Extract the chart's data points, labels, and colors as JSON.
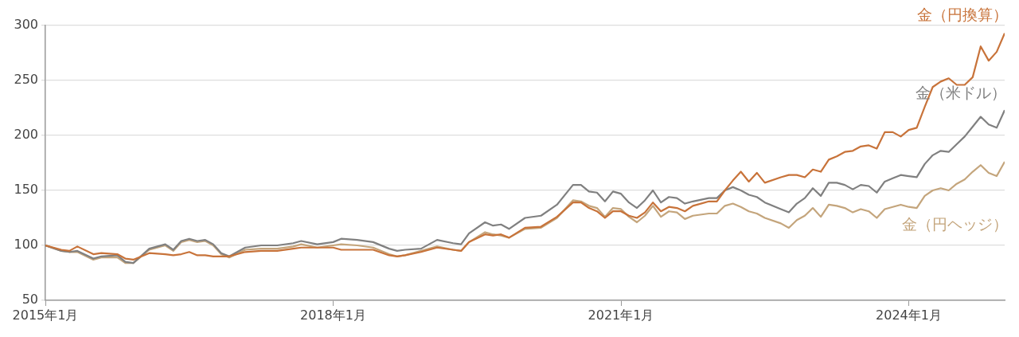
{
  "chart_data": {
    "type": "line",
    "x": [
      "2015-01",
      "2015-03",
      "2015-04",
      "2015-05",
      "2015-07",
      "2015-08",
      "2015-10",
      "2015-11",
      "2015-12",
      "2016-02",
      "2016-04",
      "2016-05",
      "2016-06",
      "2016-07",
      "2016-08",
      "2016-09",
      "2016-10",
      "2016-11",
      "2016-12",
      "2017-02",
      "2017-04",
      "2017-06",
      "2017-08",
      "2017-09",
      "2017-11",
      "2018-01",
      "2018-02",
      "2018-04",
      "2018-06",
      "2018-08",
      "2018-09",
      "2018-10",
      "2018-12",
      "2019-02",
      "2019-04",
      "2019-05",
      "2019-06",
      "2019-08",
      "2019-09",
      "2019-10",
      "2019-11",
      "2020-01",
      "2020-03",
      "2020-05",
      "2020-07",
      "2020-08",
      "2020-09",
      "2020-10",
      "2020-11",
      "2020-12",
      "2021-01",
      "2021-02",
      "2021-03",
      "2021-04",
      "2021-05",
      "2021-06",
      "2021-07",
      "2021-08",
      "2021-09",
      "2021-10",
      "2021-12",
      "2022-01",
      "2022-02",
      "2022-03",
      "2022-04",
      "2022-05",
      "2022-06",
      "2022-07",
      "2022-09",
      "2022-10",
      "2022-11",
      "2022-12",
      "2023-01",
      "2023-02",
      "2023-03",
      "2023-04",
      "2023-05",
      "2023-06",
      "2023-07",
      "2023-08",
      "2023-09",
      "2023-10",
      "2023-11",
      "2023-12",
      "2024-01",
      "2024-02",
      "2024-03",
      "2024-04",
      "2024-05",
      "2024-06",
      "2024-07",
      "2024-08",
      "2024-09",
      "2024-10",
      "2024-11",
      "2024-12",
      "2025-01"
    ],
    "series": [
      {
        "name": "金（円換算）",
        "color": "#c8733a",
        "values": [
          100,
          96,
          95,
          99,
          92,
          93,
          92,
          88,
          87,
          93,
          92,
          91,
          92,
          94,
          91,
          91,
          90,
          90,
          90,
          94,
          95,
          95,
          97,
          98,
          98,
          98,
          96,
          96,
          96,
          91,
          90,
          91,
          94,
          98,
          96,
          95,
          103,
          110,
          109,
          110,
          107,
          116,
          117,
          126,
          139,
          139,
          134,
          131,
          125,
          131,
          131,
          127,
          125,
          130,
          139,
          131,
          135,
          134,
          131,
          136,
          140,
          140,
          150,
          159,
          167,
          158,
          166,
          157,
          162,
          164,
          164,
          162,
          169,
          167,
          178,
          181,
          185,
          186,
          190,
          191,
          188,
          203,
          203,
          199,
          205,
          207,
          226,
          244,
          249,
          252,
          246,
          246,
          253,
          281,
          268,
          276,
          293
        ]
      },
      {
        "name": "金（米ドル）",
        "color": "#808080",
        "values": [
          100,
          95,
          94,
          95,
          88,
          90,
          91,
          85,
          84,
          97,
          101,
          96,
          104,
          106,
          104,
          105,
          101,
          93,
          90,
          98,
          100,
          100,
          102,
          104,
          101,
          103,
          106,
          105,
          103,
          97,
          95,
          96,
          97,
          105,
          102,
          101,
          111,
          121,
          118,
          119,
          115,
          125,
          127,
          137,
          155,
          155,
          149,
          148,
          140,
          149,
          147,
          139,
          134,
          141,
          150,
          139,
          144,
          143,
          138,
          140,
          143,
          143,
          150,
          153,
          150,
          146,
          144,
          139,
          133,
          130,
          138,
          143,
          152,
          145,
          157,
          157,
          155,
          151,
          155,
          154,
          148,
          158,
          161,
          164,
          163,
          162,
          174,
          182,
          186,
          185,
          192,
          199,
          208,
          217,
          210,
          207,
          223
        ]
      },
      {
        "name": "金（円ヘッジ）",
        "color": "#c4a57c",
        "values": [
          100,
          95,
          94,
          94,
          87,
          89,
          89,
          84,
          84,
          96,
          100,
          95,
          103,
          105,
          103,
          104,
          100,
          92,
          89,
          96,
          97,
          97,
          99,
          101,
          98,
          100,
          101,
          100,
          98,
          92,
          90,
          91,
          95,
          99,
          96,
          95,
          103,
          112,
          110,
          109,
          107,
          115,
          116,
          125,
          141,
          140,
          136,
          134,
          126,
          134,
          133,
          126,
          121,
          127,
          136,
          126,
          131,
          130,
          124,
          127,
          129,
          129,
          136,
          138,
          135,
          131,
          129,
          125,
          120,
          116,
          123,
          127,
          134,
          126,
          137,
          136,
          134,
          130,
          133,
          131,
          125,
          133,
          135,
          137,
          135,
          134,
          145,
          150,
          152,
          150,
          156,
          160,
          167,
          173,
          166,
          163,
          176
        ]
      }
    ],
    "xlim": [
      "2015-01",
      "2025-01"
    ],
    "xticks": [
      {
        "value": "2015-01",
        "label": "2015年1月"
      },
      {
        "value": "2018-01",
        "label": "2018年1月"
      },
      {
        "value": "2021-01",
        "label": "2021年1月"
      },
      {
        "value": "2024-01",
        "label": "2024年1月"
      }
    ],
    "ylim": [
      50,
      300
    ],
    "yticks": [
      50,
      100,
      150,
      200,
      250,
      300
    ],
    "grid": "y",
    "legend": false,
    "marker": "none",
    "line_style": "solid"
  }
}
